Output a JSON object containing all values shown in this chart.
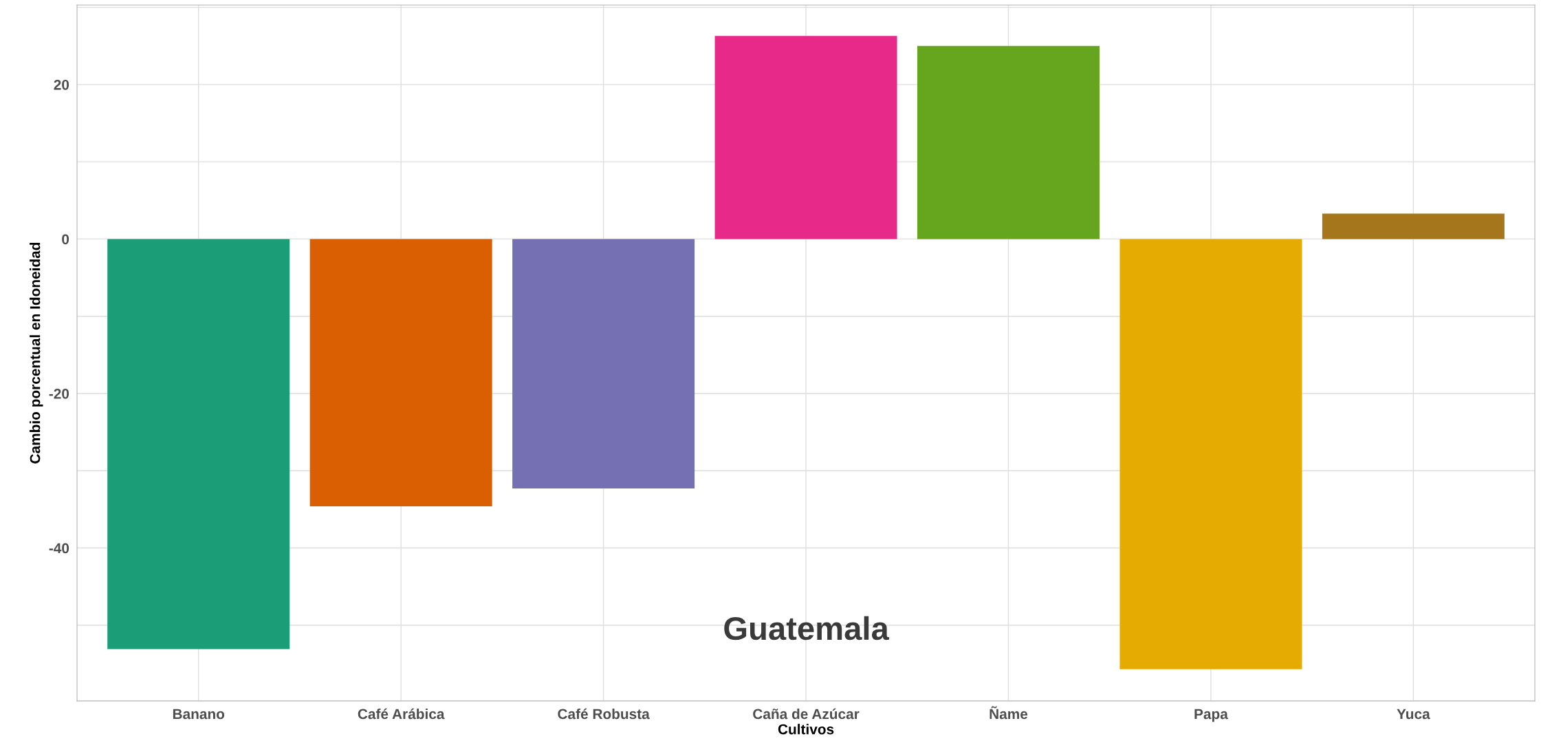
{
  "chart_data": {
    "type": "bar",
    "xlabel": "Cultivos",
    "ylabel": "Cambio porcentual en Idoneidad",
    "categories": [
      "Banano",
      "Café Arábica",
      "Café Robusta",
      "Caña de Azúcar",
      "Ñame",
      "Papa",
      "Yuca"
    ],
    "values": [
      -53.1,
      -34.6,
      -32.3,
      26.3,
      25.0,
      -55.7,
      3.3
    ],
    "colors": [
      "#1b9e77",
      "#d95f02",
      "#7570b3",
      "#e7298a",
      "#66a61e",
      "#e6ab02",
      "#a6761d"
    ],
    "ylim": [
      -59.8,
      30.3
    ],
    "yticks": [
      {
        "value": -50,
        "label": null
      },
      -40,
      {
        "value": -30,
        "label": null
      },
      -20,
      {
        "value": -10,
        "label": null
      },
      0,
      {
        "value": 10,
        "label": null
      },
      20,
      {
        "value": 30,
        "label": null
      }
    ],
    "grid": true,
    "legend": false,
    "annotations": [
      "Guatemala"
    ]
  }
}
